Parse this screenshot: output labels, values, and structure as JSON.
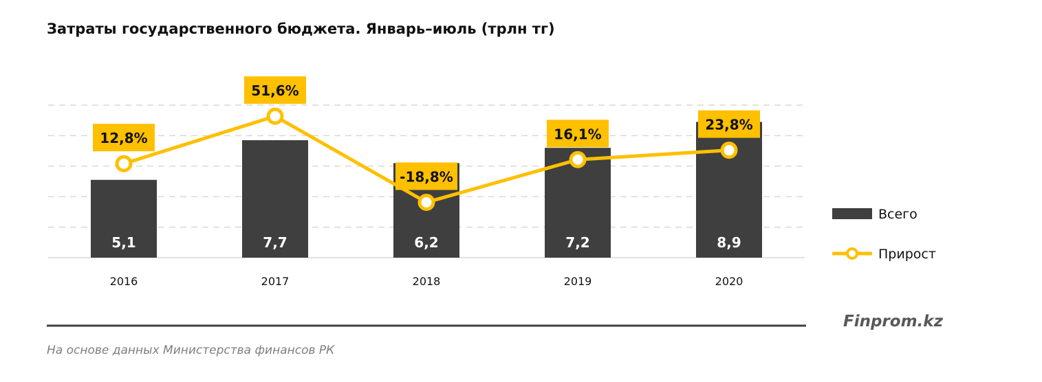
{
  "chart_data": {
    "type": "bar+line",
    "title": "Затраты государственного бюджета. Январь–июль (трлн тг)",
    "categories": [
      "2016",
      "2017",
      "2018",
      "2019",
      "2020"
    ],
    "series": [
      {
        "name": "Всего",
        "type": "bar",
        "values": [
          5.1,
          7.7,
          6.2,
          7.2,
          8.9
        ],
        "labels": [
          "5,1",
          "7,7",
          "6,2",
          "7,2",
          "8,9"
        ],
        "color": "#3f3f3f"
      },
      {
        "name": "Прирост",
        "type": "line",
        "values": [
          12.8,
          51.6,
          -18.8,
          16.1,
          23.8
        ],
        "labels": [
          "12,8%",
          "51,6%",
          "-18,8%",
          "16,1%",
          "23,8%"
        ],
        "color": "#ffc000"
      }
    ],
    "ylim": [
      0,
      10
    ],
    "grid": true,
    "legend": "right"
  },
  "brand": "Finprom.kz",
  "source": "На основе данных Министерства финансов РК"
}
